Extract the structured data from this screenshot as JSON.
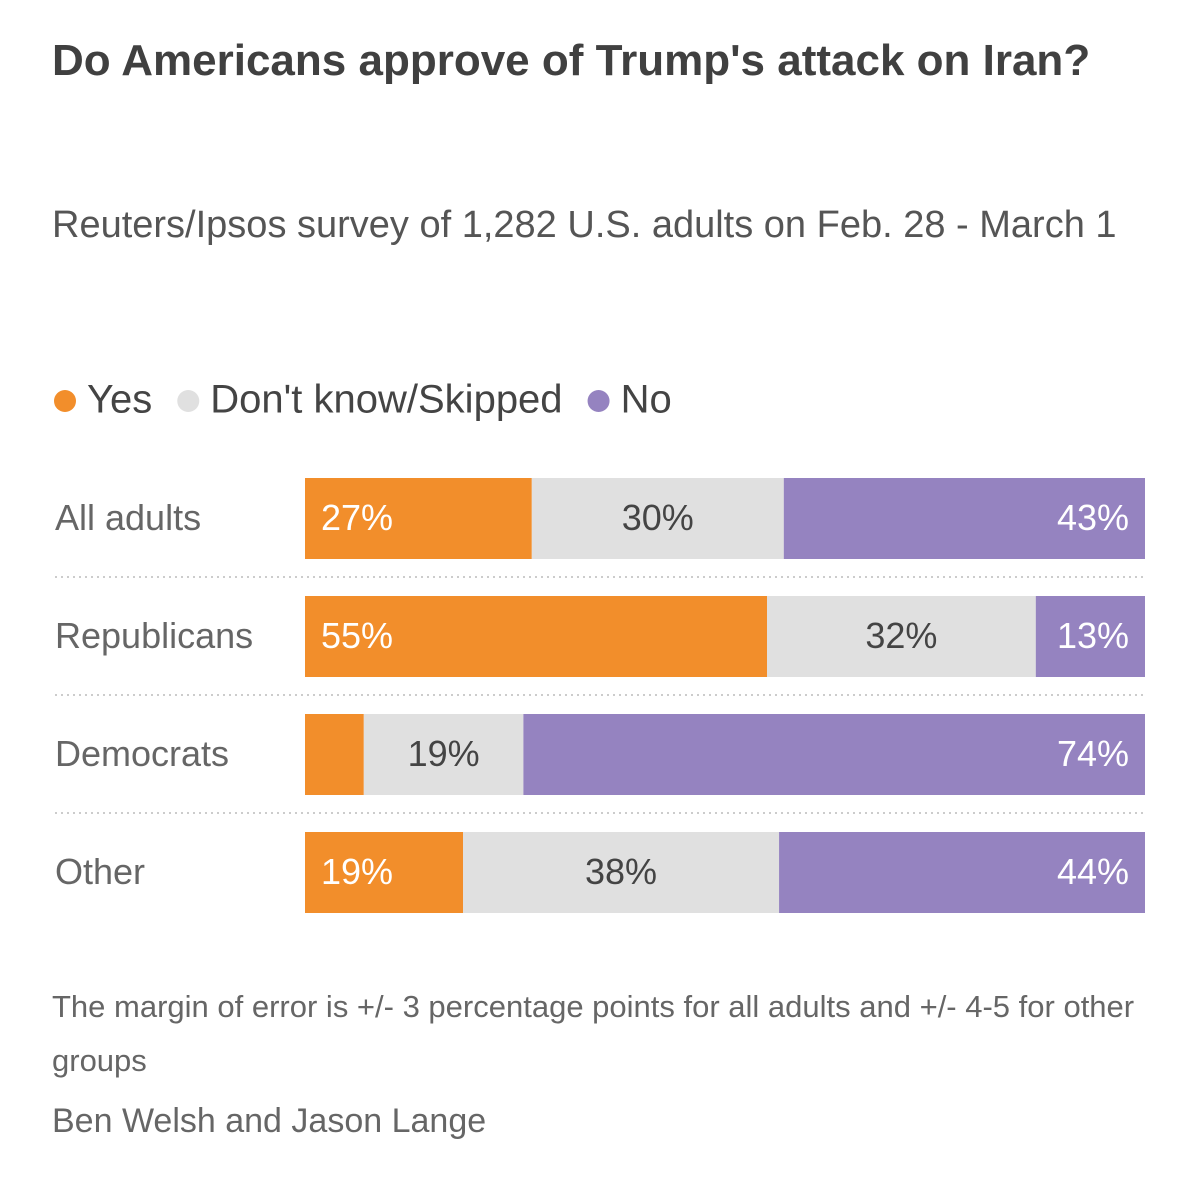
{
  "chart_data": {
    "type": "stacked-bar",
    "title": "Do Americans approve of Trump's attack on Iran?",
    "subtitle": "Reuters/Ipsos survey of 1,282 U.S. adults on Feb. 28 - March 1",
    "categories": [
      "All adults",
      "Republicans",
      "Democrats",
      "Other"
    ],
    "series": [
      {
        "name": "Yes",
        "color": "#f28e2b",
        "values": [
          27,
          55,
          7,
          19
        ],
        "value_labels": [
          "27%",
          "55%",
          null,
          "19%"
        ]
      },
      {
        "name": "Don't know/Skipped",
        "color": "#e0e0e0",
        "values": [
          30,
          32,
          19,
          38
        ],
        "value_labels": [
          "30%",
          "32%",
          "19%",
          "38%"
        ]
      },
      {
        "name": "No",
        "color": "#9583c0",
        "values": [
          43,
          13,
          74,
          44
        ],
        "value_labels": [
          "43%",
          "13%",
          "74%",
          "44%"
        ]
      }
    ],
    "note": "The margin of error is +/- 3 percentage points for all adults and +/- 4-5 for other groups",
    "byline": "Ben Welsh and Jason Lange"
  }
}
